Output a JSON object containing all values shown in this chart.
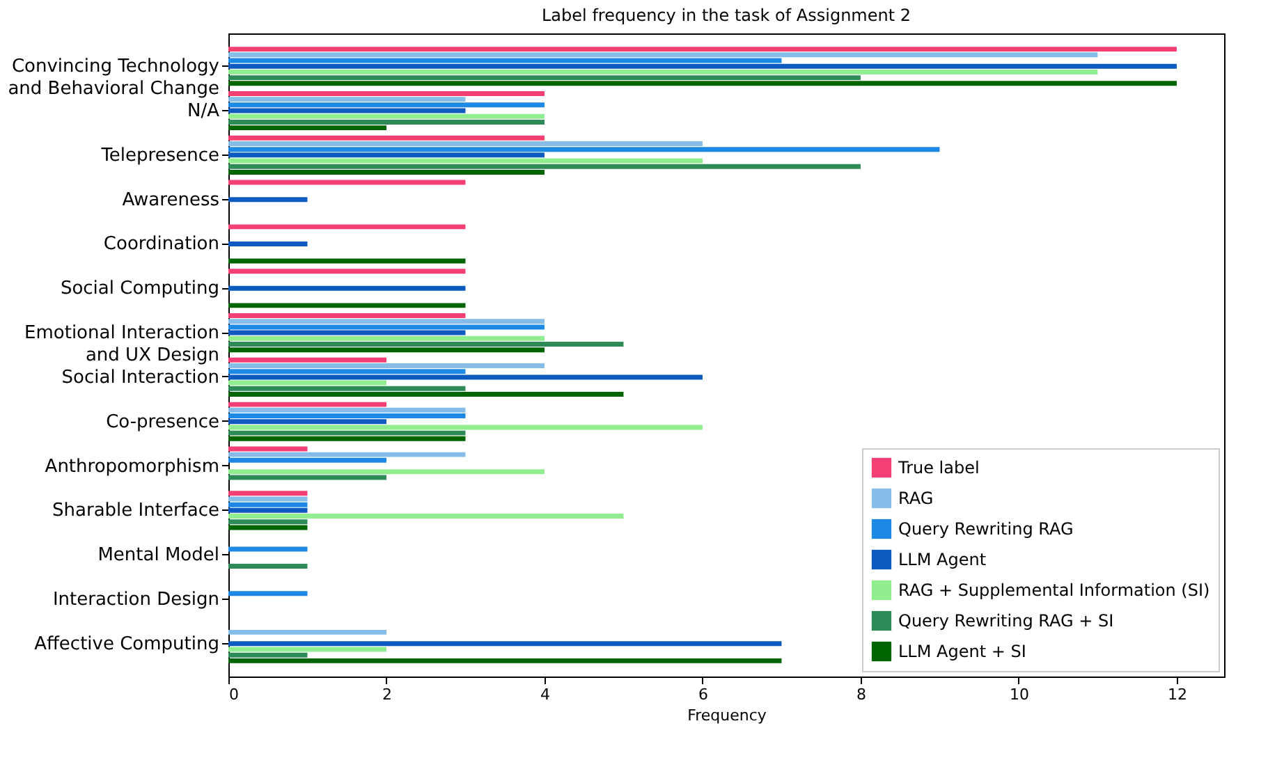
{
  "chart_data": {
    "type": "bar",
    "orientation": "horizontal",
    "title": "Label frequency in the task of Assignment 2",
    "xlabel": "Frequency",
    "categories": [
      "Convincing Technology and Behavioral Change",
      "N/A",
      "Telepresence",
      "Awareness",
      "Coordination",
      "Social Computing",
      "Emotional Interaction and UX Design",
      "Social Interaction",
      "Co-presence",
      "Anthropomorphism",
      "Sharable Interface",
      "Mental Model",
      "Interaction Design",
      "Affective Computing"
    ],
    "series": [
      {
        "name": "True label",
        "color": "#f43f75",
        "values": [
          12,
          4,
          4,
          3,
          3,
          3,
          3,
          2,
          2,
          1,
          1,
          0,
          0,
          0
        ]
      },
      {
        "name": "RAG",
        "color": "#85bde8",
        "values": [
          11,
          3,
          6,
          0,
          0,
          0,
          4,
          4,
          3,
          3,
          1,
          0,
          0,
          2
        ]
      },
      {
        "name": "Query Rewriting RAG",
        "color": "#1e88e5",
        "values": [
          7,
          4,
          9,
          0,
          0,
          0,
          4,
          3,
          3,
          2,
          1,
          1,
          1,
          0
        ]
      },
      {
        "name": "LLM Agent",
        "color": "#0d5bbf",
        "values": [
          12,
          3,
          4,
          1,
          1,
          3,
          3,
          6,
          2,
          0,
          1,
          0,
          0,
          7
        ]
      },
      {
        "name": "RAG + Supplemental Information (SI)",
        "color": "#90ee90",
        "values": [
          11,
          4,
          6,
          0,
          0,
          0,
          4,
          2,
          6,
          4,
          5,
          0,
          0,
          2
        ]
      },
      {
        "name": "Query Rewriting RAG + SI",
        "color": "#2e8b57",
        "values": [
          8,
          4,
          8,
          0,
          0,
          0,
          5,
          3,
          3,
          2,
          1,
          1,
          0,
          1
        ]
      },
      {
        "name": "LLM Agent + SI",
        "color": "#006400",
        "values": [
          12,
          2,
          4,
          0,
          3,
          3,
          4,
          5,
          3,
          0,
          1,
          0,
          0,
          7
        ]
      }
    ],
    "xlim": [
      0,
      12.6
    ],
    "xticks": [
      0,
      2,
      4,
      6,
      8,
      10,
      12
    ],
    "grid": false,
    "legend": "bottom right"
  }
}
